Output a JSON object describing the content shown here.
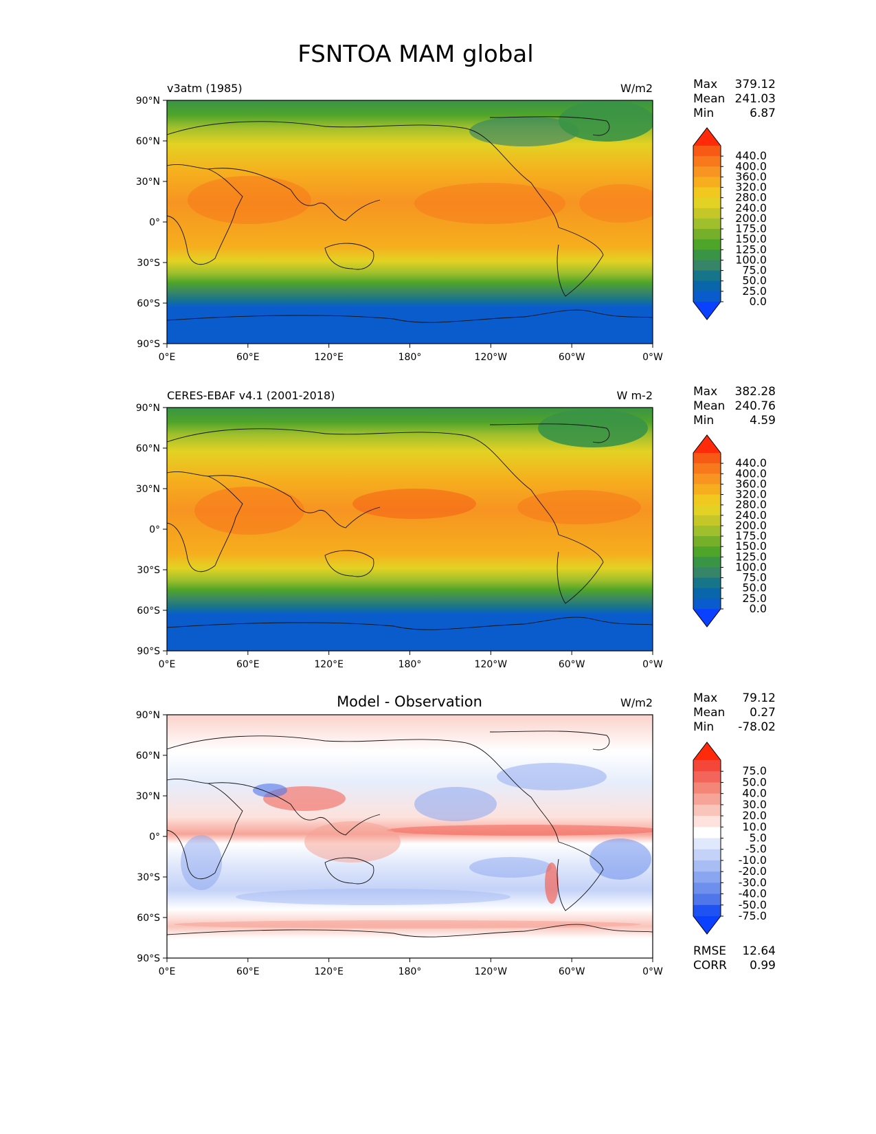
{
  "figure": {
    "title": "FSNTOA MAM global"
  },
  "axes": {
    "lat_ticks": [
      "90°N",
      "60°N",
      "30°N",
      "0°",
      "30°S",
      "60°S",
      "90°S"
    ],
    "lon_ticks": [
      "0°E",
      "60°E",
      "120°E",
      "180°",
      "120°W",
      "60°W",
      "0°W"
    ]
  },
  "chart_data": [
    {
      "type": "heatmap",
      "subtitle_left": "v3atm (1985)",
      "subtitle_center": "",
      "units": "W/m2",
      "stats": [
        {
          "label": "Max",
          "value": "379.12"
        },
        {
          "label": "Mean",
          "value": "241.03"
        },
        {
          "label": "Min",
          "value": "6.87"
        }
      ],
      "colorbar_levels": [
        "440.0",
        "400.0",
        "360.0",
        "320.0",
        "280.0",
        "240.0",
        "200.0",
        "175.0",
        "150.0",
        "125.0",
        "100.0",
        "75.0",
        "50.0",
        "25.0",
        "0.0"
      ],
      "colorbar_colors": [
        "#ff2a0a",
        "#f65a14",
        "#f8781c",
        "#f79422",
        "#f6ae1e",
        "#f0c81f",
        "#e3d223",
        "#c5c628",
        "#9fbf2c",
        "#76b02a",
        "#4fa42a",
        "#3a9446",
        "#378569",
        "#17758a",
        "#0a66aa",
        "#0a5ccc",
        "#0a40ff"
      ],
      "xlim": [
        0,
        360
      ],
      "ylim": [
        -90,
        90
      ]
    },
    {
      "type": "heatmap",
      "subtitle_left": "CERES-EBAF v4.1 (2001-2018)",
      "subtitle_center": "",
      "units": "W m-2",
      "stats": [
        {
          "label": "Max",
          "value": "382.28"
        },
        {
          "label": "Mean",
          "value": "240.76"
        },
        {
          "label": "Min",
          "value": "4.59"
        }
      ],
      "colorbar_levels": [
        "440.0",
        "400.0",
        "360.0",
        "320.0",
        "280.0",
        "240.0",
        "200.0",
        "175.0",
        "150.0",
        "125.0",
        "100.0",
        "75.0",
        "50.0",
        "25.0",
        "0.0"
      ],
      "colorbar_colors": [
        "#ff2a0a",
        "#f65a14",
        "#f8781c",
        "#f79422",
        "#f6ae1e",
        "#f0c81f",
        "#e3d223",
        "#c5c628",
        "#9fbf2c",
        "#76b02a",
        "#4fa42a",
        "#3a9446",
        "#378569",
        "#17758a",
        "#0a66aa",
        "#0a5ccc",
        "#0a40ff"
      ],
      "xlim": [
        0,
        360
      ],
      "ylim": [
        -90,
        90
      ]
    },
    {
      "type": "heatmap",
      "subtitle_left": "",
      "subtitle_center": "Model - Observation",
      "units": "W/m2",
      "stats": [
        {
          "label": "Max",
          "value": "79.12"
        },
        {
          "label": "Mean",
          "value": "0.27"
        },
        {
          "label": "Min",
          "value": "-78.02"
        }
      ],
      "metrics": [
        {
          "label": "RMSE",
          "value": "12.64"
        },
        {
          "label": "CORR",
          "value": "0.99"
        }
      ],
      "colorbar_levels": [
        "75.0",
        "50.0",
        "40.0",
        "30.0",
        "20.0",
        "10.0",
        "5.0",
        "-5.0",
        "-10.0",
        "-20.0",
        "-30.0",
        "-40.0",
        "-50.0",
        "-75.0"
      ],
      "colorbar_colors": [
        "#ff2a0a",
        "#f5463a",
        "#f3655a",
        "#f48678",
        "#f6a498",
        "#f9c4ba",
        "#fde2dd",
        "#ffffff",
        "#e0e8fb",
        "#c4d2f8",
        "#a7bdf4",
        "#8ba6f0",
        "#6e8fec",
        "#4f77ea",
        "#1f52f3",
        "#0a40ff"
      ],
      "xlim": [
        0,
        360
      ],
      "ylim": [
        -90,
        90
      ]
    }
  ]
}
